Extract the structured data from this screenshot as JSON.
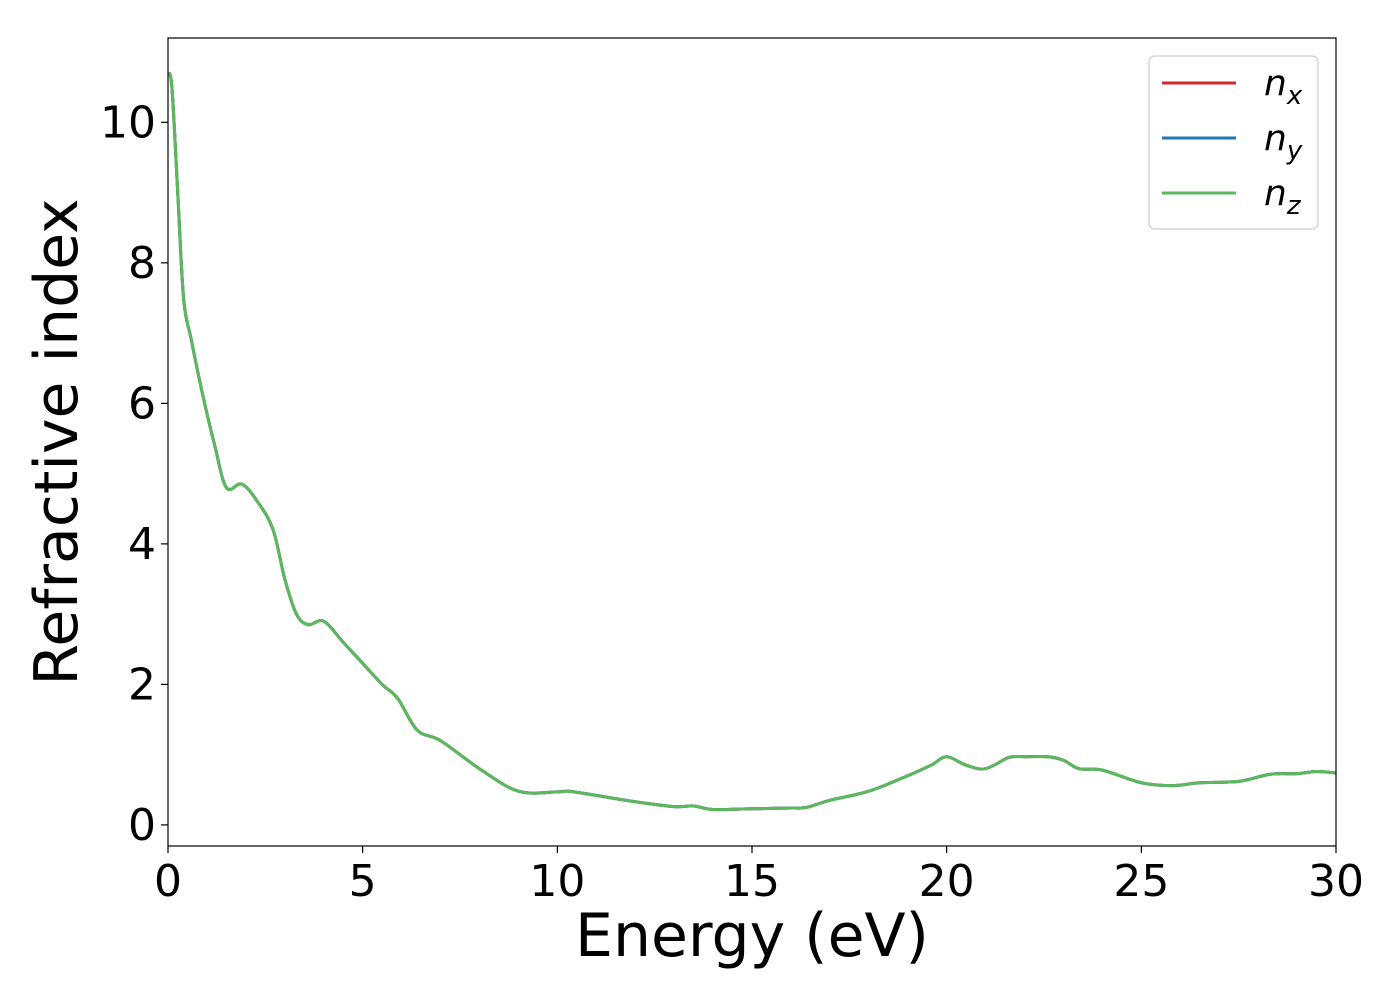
{
  "chart_data": {
    "type": "line",
    "xlabel": "Energy (eV)",
    "ylabel": "Refractive index",
    "xlim": [
      0,
      30
    ],
    "ylim": [
      -0.3,
      11.2
    ],
    "xticks": [
      0,
      5,
      10,
      15,
      20,
      25,
      30
    ],
    "yticks": [
      0,
      2,
      4,
      6,
      8,
      10
    ],
    "grid": false,
    "legend_position": "top-right",
    "series": [
      {
        "name": "n_x",
        "label_base": "n",
        "label_sub": "x",
        "color": "#d62728",
        "x": [
          0,
          0.1,
          0.25,
          0.4,
          0.6,
          0.9,
          1.2,
          1.5,
          1.9,
          2.3,
          2.7,
          3.0,
          3.3,
          3.6,
          4.0,
          4.5,
          5.0,
          5.5,
          5.9,
          6.4,
          7.0,
          8.0,
          9.0,
          10.0,
          10.3,
          11.0,
          12.0,
          13.0,
          13.5,
          14.0,
          15.0,
          16.0,
          16.4,
          17.0,
          18.0,
          19.0,
          19.6,
          20.0,
          20.5,
          21.0,
          21.6,
          22.0,
          22.6,
          23.0,
          23.4,
          24.0,
          25.0,
          25.8,
          26.5,
          27.5,
          28.3,
          29.0,
          29.5,
          30.0
        ],
        "values": [
          10.7,
          10.5,
          9.0,
          7.5,
          6.9,
          6.1,
          5.4,
          4.8,
          4.85,
          4.6,
          4.2,
          3.5,
          3.0,
          2.85,
          2.9,
          2.6,
          2.3,
          2.0,
          1.8,
          1.35,
          1.2,
          0.8,
          0.48,
          0.47,
          0.48,
          0.42,
          0.33,
          0.26,
          0.27,
          0.22,
          0.23,
          0.24,
          0.25,
          0.35,
          0.48,
          0.7,
          0.85,
          0.97,
          0.85,
          0.8,
          0.96,
          0.97,
          0.97,
          0.92,
          0.8,
          0.78,
          0.6,
          0.56,
          0.6,
          0.62,
          0.72,
          0.73,
          0.76,
          0.74
        ]
      },
      {
        "name": "n_y",
        "label_base": "n",
        "label_sub": "y",
        "color": "#1f77b4",
        "x": [
          0,
          0.1,
          0.25,
          0.4,
          0.6,
          0.9,
          1.2,
          1.5,
          1.9,
          2.3,
          2.7,
          3.0,
          3.3,
          3.6,
          4.0,
          4.5,
          5.0,
          5.5,
          5.9,
          6.4,
          7.0,
          8.0,
          9.0,
          10.0,
          10.3,
          11.0,
          12.0,
          13.0,
          13.5,
          14.0,
          15.0,
          16.0,
          16.4,
          17.0,
          18.0,
          19.0,
          19.6,
          20.0,
          20.5,
          21.0,
          21.6,
          22.0,
          22.6,
          23.0,
          23.4,
          24.0,
          25.0,
          25.8,
          26.5,
          27.5,
          28.3,
          29.0,
          29.5,
          30.0
        ],
        "values": [
          10.7,
          10.5,
          9.0,
          7.5,
          6.9,
          6.1,
          5.4,
          4.8,
          4.85,
          4.6,
          4.2,
          3.5,
          3.0,
          2.85,
          2.9,
          2.6,
          2.3,
          2.0,
          1.8,
          1.35,
          1.2,
          0.8,
          0.48,
          0.47,
          0.48,
          0.42,
          0.33,
          0.26,
          0.27,
          0.22,
          0.23,
          0.24,
          0.25,
          0.35,
          0.48,
          0.7,
          0.85,
          0.97,
          0.85,
          0.8,
          0.96,
          0.97,
          0.97,
          0.92,
          0.8,
          0.78,
          0.6,
          0.56,
          0.6,
          0.62,
          0.72,
          0.73,
          0.76,
          0.74
        ]
      },
      {
        "name": "n_z",
        "label_base": "n",
        "label_sub": "z",
        "color": "#5cb85c",
        "x": [
          0,
          0.1,
          0.25,
          0.4,
          0.6,
          0.9,
          1.2,
          1.5,
          1.9,
          2.3,
          2.7,
          3.0,
          3.3,
          3.6,
          4.0,
          4.5,
          5.0,
          5.5,
          5.9,
          6.4,
          7.0,
          8.0,
          9.0,
          10.0,
          10.3,
          11.0,
          12.0,
          13.0,
          13.5,
          14.0,
          15.0,
          16.0,
          16.4,
          17.0,
          18.0,
          19.0,
          19.6,
          20.0,
          20.5,
          21.0,
          21.6,
          22.0,
          22.6,
          23.0,
          23.4,
          24.0,
          25.0,
          25.8,
          26.5,
          27.5,
          28.3,
          29.0,
          29.5,
          30.0
        ],
        "values": [
          10.7,
          10.5,
          9.0,
          7.5,
          6.9,
          6.1,
          5.4,
          4.8,
          4.85,
          4.6,
          4.2,
          3.5,
          3.0,
          2.85,
          2.9,
          2.6,
          2.3,
          2.0,
          1.8,
          1.35,
          1.2,
          0.8,
          0.48,
          0.47,
          0.48,
          0.42,
          0.33,
          0.26,
          0.27,
          0.22,
          0.23,
          0.24,
          0.25,
          0.35,
          0.48,
          0.7,
          0.85,
          0.97,
          0.85,
          0.8,
          0.96,
          0.97,
          0.97,
          0.92,
          0.8,
          0.78,
          0.6,
          0.56,
          0.6,
          0.62,
          0.72,
          0.73,
          0.76,
          0.74
        ]
      }
    ]
  }
}
